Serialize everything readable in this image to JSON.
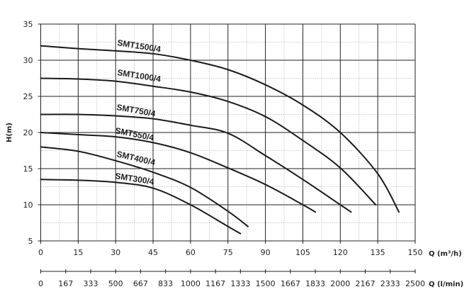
{
  "chart_data": {
    "type": "line",
    "title": "",
    "xlabel": "Q (m³/h)",
    "ylabel": "H(m)",
    "x2label": "Q (l/min)",
    "xlim": [
      0,
      150
    ],
    "ylim": [
      5,
      35
    ],
    "xticks": [
      0,
      15,
      30,
      45,
      60,
      75,
      90,
      105,
      120,
      135,
      150
    ],
    "yticks": [
      5,
      10,
      15,
      20,
      25,
      30,
      35
    ],
    "x2ticks": [
      "0",
      "167",
      "333",
      "500",
      "667",
      "833",
      "1000",
      "1167",
      "1333",
      "1500",
      "1667",
      "1833",
      "2000",
      "2167",
      "2333",
      "2500"
    ],
    "grid": true,
    "line_color": "#1a1a1a",
    "series": [
      {
        "name": "SMT1500/4",
        "x": [
          0,
          15,
          30,
          45,
          60,
          75,
          90,
          105,
          120,
          135,
          143.5
        ],
        "y": [
          32,
          31.6,
          31.3,
          30.9,
          30,
          28.7,
          26.6,
          23.8,
          20,
          14.3,
          9
        ]
      },
      {
        "name": "SMT1000/4",
        "x": [
          0,
          15,
          30,
          45,
          60,
          75,
          90,
          105,
          120,
          134.2
        ],
        "y": [
          27.5,
          27.4,
          27.1,
          26.4,
          25.6,
          24.3,
          22.2,
          18.9,
          15.1,
          10
        ]
      },
      {
        "name": "SMT750/4",
        "x": [
          0,
          15,
          30,
          45,
          60,
          75,
          90,
          105,
          120,
          124.3
        ],
        "y": [
          22.5,
          22.5,
          22.3,
          21.9,
          21,
          19.9,
          16.8,
          13.5,
          10,
          9
        ]
      },
      {
        "name": "SMT550/4",
        "x": [
          0,
          15,
          30,
          45,
          60,
          75,
          90,
          105,
          110
        ],
        "y": [
          20,
          19.7,
          19.4,
          18.6,
          17.2,
          15.1,
          12.8,
          10,
          9
        ]
      },
      {
        "name": "SMT400/4",
        "x": [
          0,
          15,
          30,
          45,
          60,
          75,
          83
        ],
        "y": [
          18,
          17.4,
          16.1,
          14.5,
          12.4,
          9.1,
          7
        ]
      },
      {
        "name": "SMT300/4",
        "x": [
          0,
          15,
          30,
          45,
          60,
          75,
          80
        ],
        "y": [
          13.5,
          13.4,
          13.1,
          12.3,
          10,
          7,
          6
        ]
      }
    ]
  }
}
